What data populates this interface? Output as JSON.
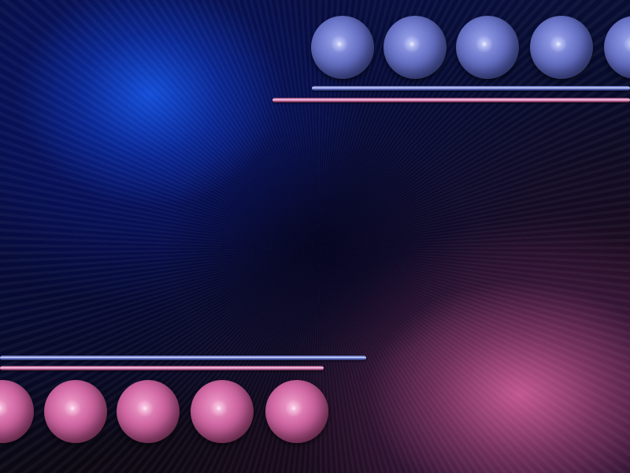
{
  "scene": {
    "name": "abstract-wallpaper",
    "colors": {
      "background_dark": "#05060c",
      "glow_blue": "#1450dc",
      "glow_pink": "#c85a96",
      "ball_blue": "#6e79cc",
      "ball_pink": "#d26aa6",
      "bar_blue": "#cfd6ff",
      "bar_pink": "#ffd2ee"
    },
    "top_group": {
      "ball_count": 5,
      "ball_color": "blue",
      "bars": [
        "blue",
        "pink"
      ]
    },
    "bottom_group": {
      "ball_count": 5,
      "ball_color": "pink",
      "bars": [
        "blue",
        "pink"
      ]
    }
  }
}
